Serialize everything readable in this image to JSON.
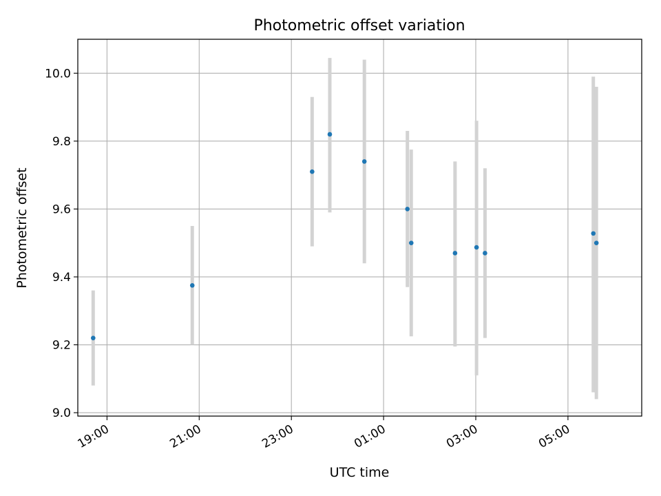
{
  "chart_data": {
    "type": "scatter",
    "title": "Photometric offset variation",
    "xlabel": "UTC time",
    "ylabel": "Photometric offset",
    "x_axis_kind": "time",
    "xlim": [
      "18:22",
      "06:36"
    ],
    "ylim": [
      8.99,
      10.1
    ],
    "grid": true,
    "x_ticks": [
      "19:00",
      "21:00",
      "23:00",
      "01:00",
      "03:00",
      "05:00"
    ],
    "y_ticks": [
      "9.0",
      "9.2",
      "9.4",
      "9.6",
      "9.8",
      "10.0"
    ],
    "colors": {
      "point": "#1f77b4",
      "error_bar": "#d3d3d3",
      "grid": "#b0b0b0",
      "axes": "#000000"
    },
    "points": [
      {
        "x": "18:42",
        "y": 9.22,
        "y_low": 9.08,
        "y_high": 9.36
      },
      {
        "x": "20:51",
        "y": 9.375,
        "y_low": 9.2,
        "y_high": 9.55
      },
      {
        "x": "23:27",
        "y": 9.71,
        "y_low": 9.49,
        "y_high": 9.93
      },
      {
        "x": "23:50",
        "y": 9.82,
        "y_low": 9.59,
        "y_high": 10.045
      },
      {
        "x": "00:35",
        "y": 9.74,
        "y_low": 9.44,
        "y_high": 10.04
      },
      {
        "x": "01:31",
        "y": 9.6,
        "y_low": 9.37,
        "y_high": 9.83
      },
      {
        "x": "01:36",
        "y": 9.5,
        "y_low": 9.225,
        "y_high": 9.775
      },
      {
        "x": "02:33",
        "y": 9.47,
        "y_low": 9.195,
        "y_high": 9.74
      },
      {
        "x": "03:01",
        "y": 9.487,
        "y_low": 9.11,
        "y_high": 9.86
      },
      {
        "x": "03:12",
        "y": 9.47,
        "y_low": 9.22,
        "y_high": 9.72
      },
      {
        "x": "05:33",
        "y": 9.528,
        "y_low": 9.06,
        "y_high": 9.99
      },
      {
        "x": "05:37",
        "y": 9.5,
        "y_low": 9.04,
        "y_high": 9.96
      }
    ]
  }
}
